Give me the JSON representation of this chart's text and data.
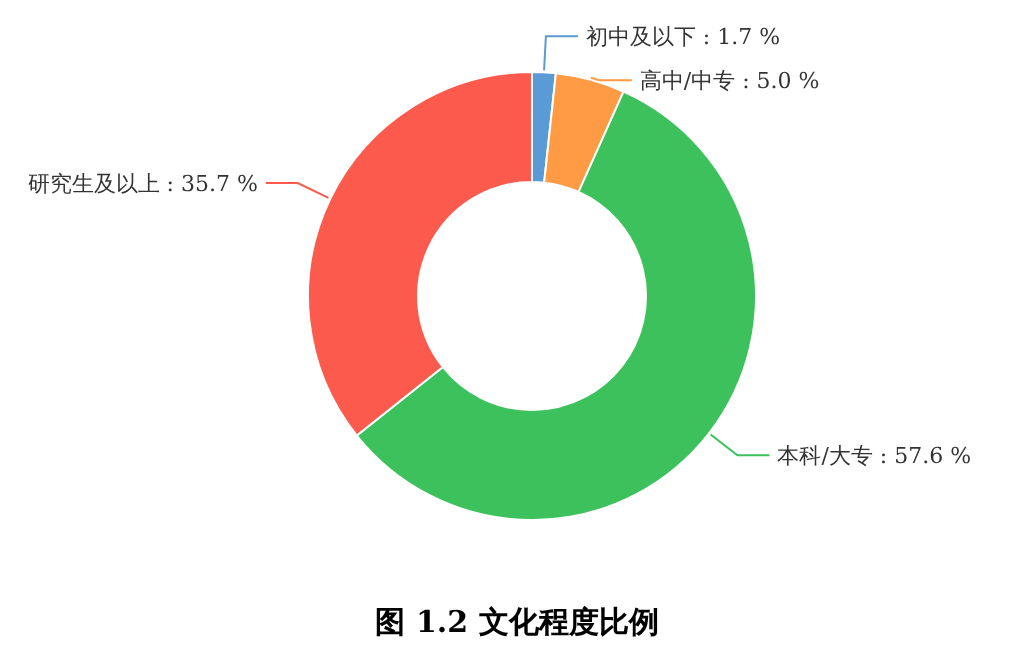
{
  "chart_data": {
    "type": "donut",
    "title": "图 1.2  文化程度比例",
    "categories": [
      "初中及以下",
      "高中/中专",
      "本科/大专",
      "研究生及以上"
    ],
    "values": [
      1.7,
      5.0,
      57.6,
      35.7
    ],
    "value_labels": [
      "1.7 %",
      "5.0 %",
      "57.6 %",
      "35.7 %"
    ],
    "colors": [
      "#5b9bd5",
      "#ff9a45",
      "#3cc15c",
      "#fd5a4e"
    ]
  }
}
